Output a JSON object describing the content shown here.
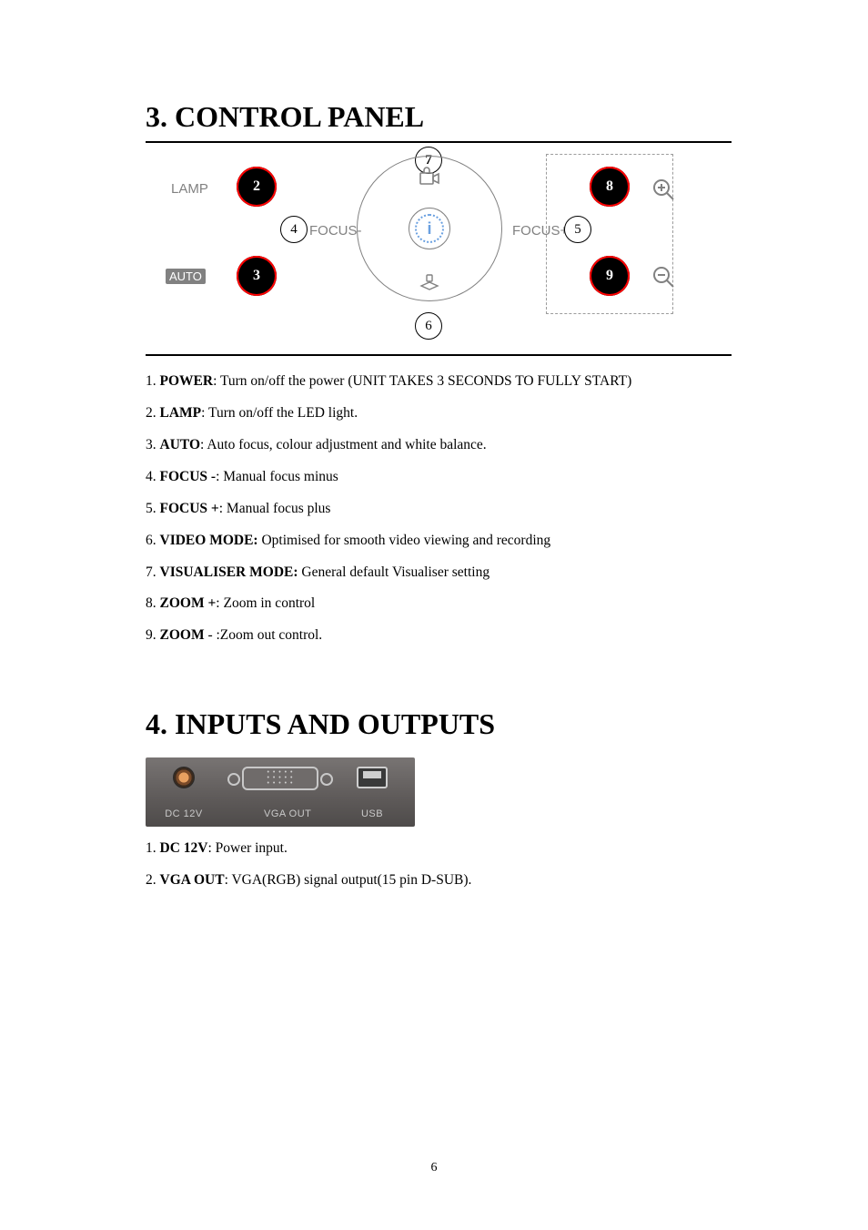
{
  "section3": {
    "title": "3. CONTROL PANEL",
    "labels": {
      "lamp": "LAMP",
      "auto": "AUTO",
      "focus_minus": "FOCUS-",
      "focus_plus": "FOCUS+",
      "center_i": "i"
    },
    "callouts": {
      "n2": "2",
      "n3": "3",
      "n4": "4",
      "n5": "5",
      "n6": "6",
      "n7": "7",
      "n8": "8",
      "n9": "9"
    },
    "items": [
      {
        "num": "1",
        "name": "POWER",
        "sep": ": ",
        "desc": "Turn on/off the power (UNIT TAKES 3 SECONDS TO FULLY START)"
      },
      {
        "num": "2",
        "name": "LAMP",
        "sep": ": ",
        "desc": "Turn on/off the LED light."
      },
      {
        "num": "3",
        "name": "AUTO",
        "sep": ": ",
        "desc": "Auto focus, colour adjustment and white balance."
      },
      {
        "num": "4",
        "name": "FOCUS -",
        "sep": ": ",
        "desc": "Manual focus minus"
      },
      {
        "num": "5",
        "name": "FOCUS +",
        "sep": ": ",
        "desc": "Manual focus plus"
      },
      {
        "num": "6",
        "name": "VIDEO MODE:",
        "sep": " ",
        "desc": "Optimised for smooth video viewing and recording"
      },
      {
        "num": "7",
        "name": "VISUALISER MODE:",
        "sep": " ",
        "desc": "General default Visualiser setting"
      },
      {
        "num": "8",
        "name": "ZOOM +",
        "sep": ": ",
        "desc": "Zoom in control"
      },
      {
        "num": "9",
        "name": "ZOOM",
        "sep": " - :",
        "desc": "Zoom out control."
      }
    ],
    "colors": {
      "button_ring": "#ff0000",
      "button_fill": "#000000",
      "label_grey": "#818181",
      "dotted_blue": "#6aa0e0"
    }
  },
  "section4": {
    "title": "4. INPUTS AND OUTPUTS",
    "ports": {
      "dc": "DC 12V",
      "vga": "VGA OUT",
      "usb": "USB"
    },
    "panel_colors": {
      "bg_top": "#787473",
      "bg_bot": "#4e4b4a",
      "silk": "#c9c9c9"
    },
    "items": [
      {
        "num": "1",
        "name": "DC 12V",
        "sep": ": ",
        "desc": "Power input."
      },
      {
        "num": "2",
        "name": "VGA OUT",
        "sep": ": ",
        "desc": "VGA(RGB) signal output(15 pin D-SUB)."
      }
    ]
  },
  "page_number": "6"
}
